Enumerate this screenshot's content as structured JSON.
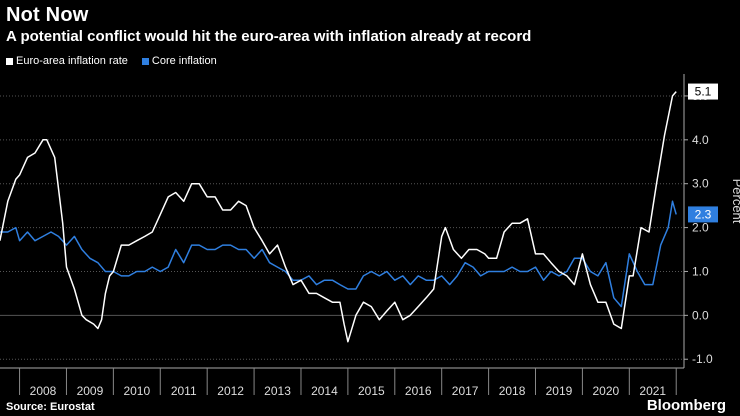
{
  "header": {
    "title": "Not Now",
    "subtitle": "A potential conflict would hit the euro-area with inflation already at record"
  },
  "footer": {
    "source": "Source: Eurostat",
    "brand": "Bloomberg"
  },
  "colors": {
    "headline": "#ffffff",
    "core": "#2f7fe0",
    "grid": "#555555",
    "background": "#000000"
  },
  "chart_data": {
    "type": "line",
    "ylabel": "Percent",
    "ylim": [
      -1.2,
      5.5
    ],
    "xlim": [
      2007.583,
      2022.166
    ],
    "yticks": [
      "5.0",
      "4.0",
      "3.0",
      "2.0",
      "1.0",
      "0.0",
      "-1.0"
    ],
    "xticks": [
      "2008",
      "2009",
      "2010",
      "2011",
      "2012",
      "2013",
      "2014",
      "2015",
      "2016",
      "2017",
      "2018",
      "2019",
      "2020",
      "2021"
    ],
    "grid": true,
    "legend": "top-left",
    "end_labels": {
      "headline": "5.1",
      "core": "2.3"
    },
    "series": [
      {
        "name": "Euro-area inflation rate",
        "color": "#ffffff",
        "x": [
          2007.58,
          2007.75,
          2007.92,
          2008.0,
          2008.17,
          2008.33,
          2008.5,
          2008.58,
          2008.75,
          2008.92,
          2009.0,
          2009.17,
          2009.33,
          2009.42,
          2009.58,
          2009.67,
          2009.75,
          2009.83,
          2009.92,
          2010.0,
          2010.17,
          2010.33,
          2010.5,
          2010.67,
          2010.83,
          2011.0,
          2011.17,
          2011.33,
          2011.5,
          2011.67,
          2011.83,
          2012.0,
          2012.17,
          2012.33,
          2012.5,
          2012.67,
          2012.83,
          2013.0,
          2013.17,
          2013.33,
          2013.5,
          2013.67,
          2013.83,
          2014.0,
          2014.17,
          2014.33,
          2014.5,
          2014.67,
          2014.83,
          2014.92,
          2015.0,
          2015.17,
          2015.33,
          2015.5,
          2015.67,
          2015.83,
          2016.0,
          2016.17,
          2016.33,
          2016.5,
          2016.67,
          2016.83,
          2017.0,
          2017.08,
          2017.25,
          2017.42,
          2017.58,
          2017.75,
          2017.92,
          2018.0,
          2018.17,
          2018.33,
          2018.5,
          2018.67,
          2018.83,
          2019.0,
          2019.17,
          2019.33,
          2019.5,
          2019.67,
          2019.83,
          2020.0,
          2020.17,
          2020.33,
          2020.5,
          2020.67,
          2020.83,
          2021.0,
          2021.08,
          2021.25,
          2021.42,
          2021.58,
          2021.75,
          2021.92,
          2022.0
        ],
        "values": [
          1.7,
          2.6,
          3.1,
          3.2,
          3.6,
          3.7,
          4.0,
          4.0,
          3.6,
          2.1,
          1.1,
          0.6,
          0.0,
          -0.1,
          -0.2,
          -0.3,
          -0.1,
          0.5,
          0.9,
          1.0,
          1.6,
          1.6,
          1.7,
          1.8,
          1.9,
          2.3,
          2.7,
          2.8,
          2.6,
          3.0,
          3.0,
          2.7,
          2.7,
          2.4,
          2.4,
          2.6,
          2.5,
          2.0,
          1.7,
          1.4,
          1.6,
          1.1,
          0.7,
          0.8,
          0.5,
          0.5,
          0.4,
          0.3,
          0.3,
          -0.2,
          -0.6,
          0.0,
          0.3,
          0.2,
          -0.1,
          0.1,
          0.3,
          -0.1,
          0.0,
          0.2,
          0.4,
          0.6,
          1.8,
          2.0,
          1.5,
          1.3,
          1.5,
          1.5,
          1.4,
          1.3,
          1.3,
          1.9,
          2.1,
          2.1,
          2.2,
          1.4,
          1.4,
          1.2,
          1.0,
          0.9,
          0.7,
          1.4,
          0.7,
          0.3,
          0.3,
          -0.2,
          -0.3,
          0.9,
          0.9,
          2.0,
          1.9,
          3.0,
          4.1,
          5.0,
          5.1
        ]
      },
      {
        "name": "Core inflation",
        "color": "#2f7fe0",
        "x": [
          2007.58,
          2007.75,
          2007.92,
          2008.0,
          2008.17,
          2008.33,
          2008.5,
          2008.67,
          2008.83,
          2009.0,
          2009.17,
          2009.33,
          2009.5,
          2009.67,
          2009.83,
          2010.0,
          2010.17,
          2010.33,
          2010.5,
          2010.67,
          2010.83,
          2011.0,
          2011.17,
          2011.33,
          2011.5,
          2011.67,
          2011.83,
          2012.0,
          2012.17,
          2012.33,
          2012.5,
          2012.67,
          2012.83,
          2013.0,
          2013.17,
          2013.33,
          2013.5,
          2013.67,
          2013.83,
          2014.0,
          2014.17,
          2014.33,
          2014.5,
          2014.67,
          2014.83,
          2015.0,
          2015.17,
          2015.33,
          2015.5,
          2015.67,
          2015.83,
          2016.0,
          2016.17,
          2016.33,
          2016.5,
          2016.67,
          2016.83,
          2017.0,
          2017.17,
          2017.33,
          2017.5,
          2017.67,
          2017.83,
          2018.0,
          2018.17,
          2018.33,
          2018.5,
          2018.67,
          2018.83,
          2019.0,
          2019.17,
          2019.33,
          2019.5,
          2019.67,
          2019.83,
          2020.0,
          2020.17,
          2020.33,
          2020.5,
          2020.67,
          2020.83,
          2021.0,
          2021.17,
          2021.33,
          2021.5,
          2021.67,
          2021.83,
          2021.92,
          2022.0
        ],
        "values": [
          1.9,
          1.9,
          2.0,
          1.7,
          1.9,
          1.7,
          1.8,
          1.9,
          1.8,
          1.6,
          1.8,
          1.5,
          1.3,
          1.2,
          1.0,
          1.0,
          0.9,
          0.9,
          1.0,
          1.0,
          1.1,
          1.0,
          1.1,
          1.5,
          1.2,
          1.6,
          1.6,
          1.5,
          1.5,
          1.6,
          1.6,
          1.5,
          1.5,
          1.3,
          1.5,
          1.2,
          1.1,
          1.0,
          0.8,
          0.8,
          0.9,
          0.7,
          0.8,
          0.8,
          0.7,
          0.6,
          0.6,
          0.9,
          1.0,
          0.9,
          1.0,
          0.8,
          0.9,
          0.7,
          0.9,
          0.8,
          0.8,
          0.9,
          0.7,
          0.9,
          1.2,
          1.1,
          0.9,
          1.0,
          1.0,
          1.0,
          1.1,
          1.0,
          1.0,
          1.1,
          0.8,
          1.0,
          0.9,
          1.0,
          1.3,
          1.3,
          1.0,
          0.9,
          1.2,
          0.4,
          0.2,
          1.4,
          1.0,
          0.7,
          0.7,
          1.6,
          2.0,
          2.6,
          2.3
        ]
      }
    ]
  }
}
